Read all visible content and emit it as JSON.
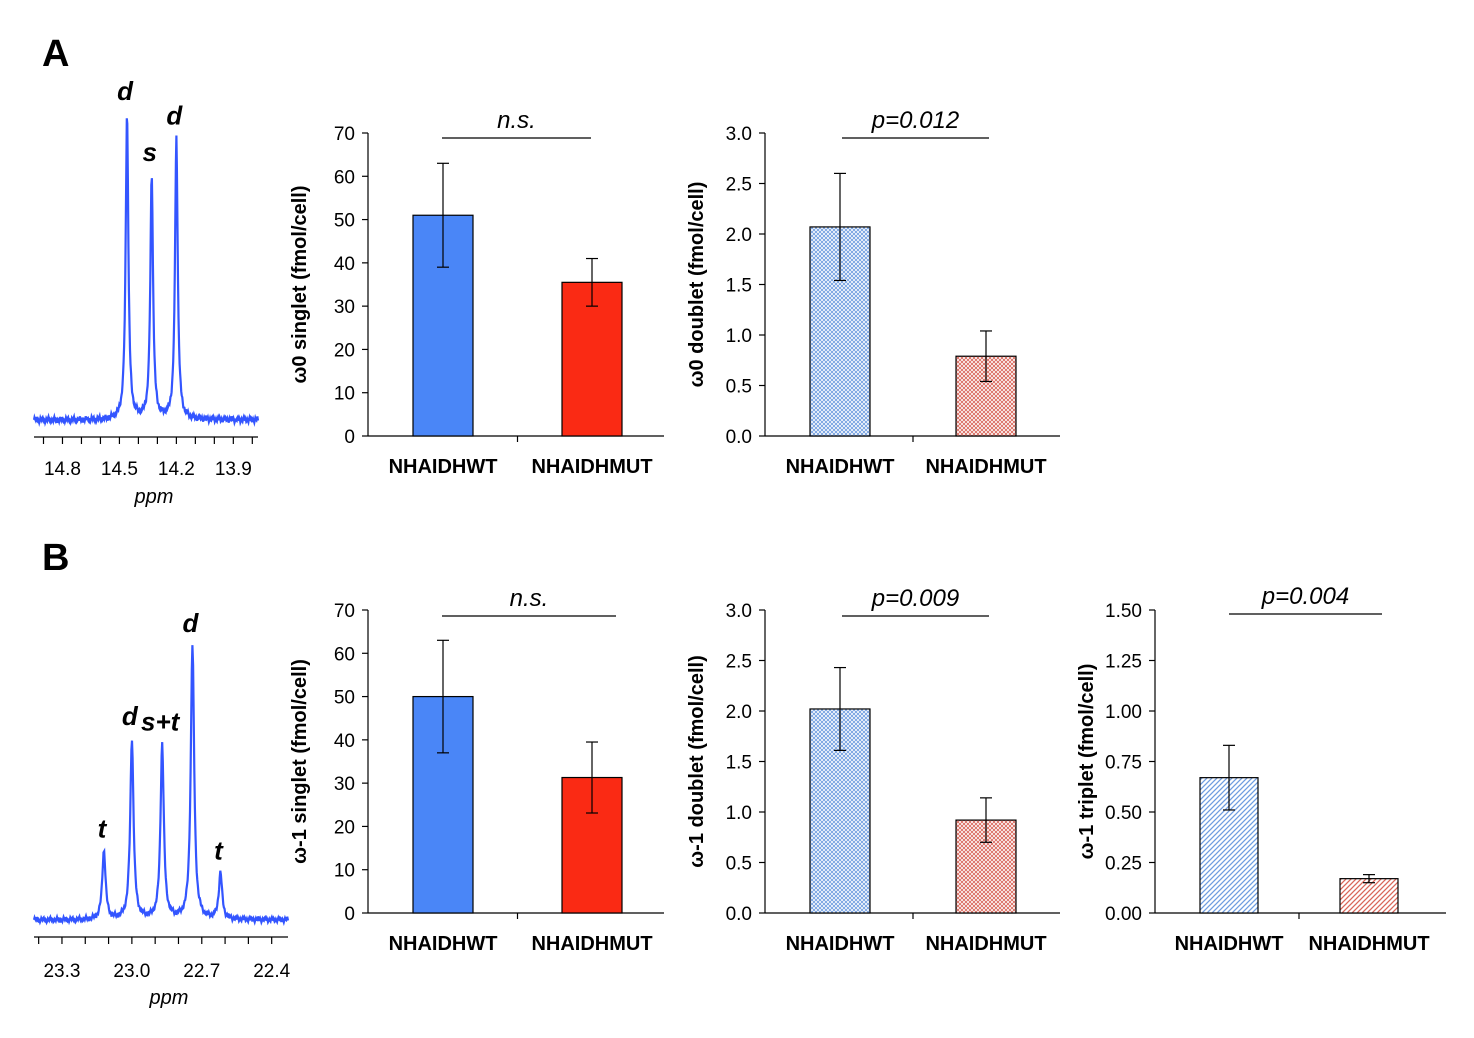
{
  "panels": [
    {
      "label": "A"
    },
    {
      "label": "B"
    }
  ],
  "chart_data": [
    {
      "id": "spectrumA",
      "type": "line",
      "panel": "A",
      "title": "",
      "xlabel": "ppm",
      "ylabel": "",
      "x_reversed": true,
      "xlim": [
        14.95,
        13.77
      ],
      "ticks": [
        14.8,
        14.5,
        14.2,
        13.9
      ],
      "tick_labels": [
        "14.8",
        "14.5",
        "14.2",
        "13.9"
      ],
      "color": "#3355ff",
      "baseline": 0.02,
      "peaks": [
        {
          "x": 14.46,
          "height": 1.0,
          "label": "d"
        },
        {
          "x": 14.33,
          "height": 0.8,
          "label": "s"
        },
        {
          "x": 14.2,
          "height": 0.92,
          "label": "d"
        }
      ]
    },
    {
      "id": "barA1",
      "type": "bar",
      "panel": "A",
      "ylabel": "ω0 singlet (fmol/cell)",
      "categories": [
        "NHAIDHWT",
        "NHAIDHMUT"
      ],
      "values": [
        51,
        35.5
      ],
      "errors": [
        12,
        5.5
      ],
      "ylim": [
        0,
        70
      ],
      "yticks": [
        "0",
        "10",
        "20",
        "30",
        "40",
        "50",
        "60",
        "70"
      ],
      "colors": [
        "#4a86f7",
        "#fa2a14"
      ],
      "pattern": "solid",
      "significance": "n.s."
    },
    {
      "id": "barA2",
      "type": "bar",
      "panel": "A",
      "ylabel": "ω0 doublet (fmol/cell)",
      "categories": [
        "NHAIDHWT",
        "NHAIDHMUT"
      ],
      "values": [
        2.07,
        0.79
      ],
      "errors": [
        0.53,
        0.25
      ],
      "ylim": [
        0,
        3.0
      ],
      "yticks": [
        "0.0",
        "0.5",
        "1.0",
        "1.5",
        "2.0",
        "2.5",
        "3.0"
      ],
      "colors": [
        "#6f9de0",
        "#d9665a"
      ],
      "pattern": "crosshatch",
      "significance": "p=0.012"
    },
    {
      "id": "spectrumB",
      "type": "line",
      "panel": "B",
      "title": "",
      "xlabel": "ppm",
      "ylabel": "",
      "x_reversed": true,
      "xlim": [
        23.42,
        22.33
      ],
      "ticks": [
        23.3,
        23.0,
        22.7,
        22.4
      ],
      "tick_labels": [
        "23.3",
        "23.0",
        "22.7",
        "22.4"
      ],
      "color": "#3355ff",
      "baseline": 0.06,
      "peaks": [
        {
          "x": 23.12,
          "height": 0.25,
          "label": "t"
        },
        {
          "x": 23.0,
          "height": 0.66,
          "label": "d"
        },
        {
          "x": 22.87,
          "height": 0.64,
          "label": "s+t"
        },
        {
          "x": 22.74,
          "height": 1.0,
          "label": "d"
        },
        {
          "x": 22.62,
          "height": 0.17,
          "label": "t"
        }
      ]
    },
    {
      "id": "barB1",
      "type": "bar",
      "panel": "B",
      "ylabel": "ω-1 singlet (fmol/cell)",
      "categories": [
        "NHAIDHWT",
        "NHAIDHMUT"
      ],
      "values": [
        50,
        31.3
      ],
      "errors": [
        13,
        8.2
      ],
      "ylim": [
        0,
        70
      ],
      "yticks": [
        "0",
        "10",
        "20",
        "30",
        "40",
        "50",
        "60",
        "70"
      ],
      "colors": [
        "#4a86f7",
        "#fa2a14"
      ],
      "pattern": "solid",
      "significance": "n.s."
    },
    {
      "id": "barB2",
      "type": "bar",
      "panel": "B",
      "ylabel": "ω-1 doublet (fmol/cell)",
      "categories": [
        "NHAIDHWT",
        "NHAIDHMUT"
      ],
      "values": [
        2.02,
        0.92
      ],
      "errors": [
        0.41,
        0.22
      ],
      "ylim": [
        0,
        3.0
      ],
      "yticks": [
        "0.0",
        "0.5",
        "1.0",
        "1.5",
        "2.0",
        "2.5",
        "3.0"
      ],
      "colors": [
        "#6f9de0",
        "#d9665a"
      ],
      "pattern": "crosshatch",
      "significance": "p=0.009"
    },
    {
      "id": "barB3",
      "type": "bar",
      "panel": "B",
      "ylabel": "ω-1 triplet (fmol/cell)",
      "categories": [
        "NHAIDHWT",
        "NHAIDHMUT"
      ],
      "values": [
        0.67,
        0.17
      ],
      "errors": [
        0.16,
        0.02
      ],
      "ylim": [
        0,
        1.5
      ],
      "yticks": [
        "0.00",
        "0.25",
        "0.50",
        "0.75",
        "1.00",
        "1.25",
        "1.50"
      ],
      "colors": [
        "#6f9de0",
        "#d9665a"
      ],
      "pattern": "diagonal",
      "significance": "p=0.004"
    }
  ]
}
